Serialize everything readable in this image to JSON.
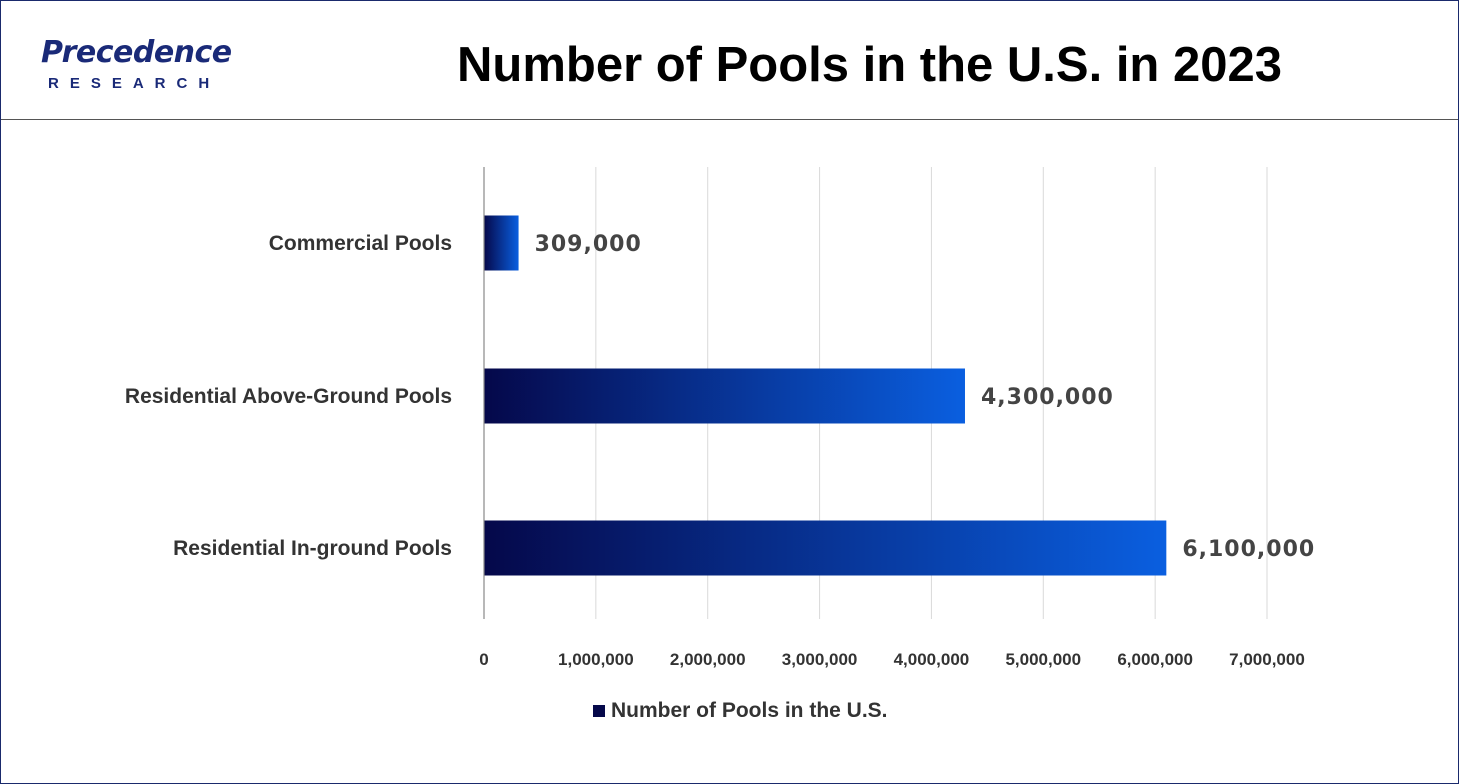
{
  "logo": {
    "word": "recedence",
    "initial": "P",
    "sub": "RESEARCH"
  },
  "title": "Number of Pools in the U.S. in 2023",
  "colors": {
    "bar_start": "#05084a",
    "bar_end": "#0a5fe0",
    "grid": "#d9d9d9",
    "axis": "#888888",
    "frame": "#1a2a6c"
  },
  "chart_data": {
    "type": "bar",
    "orientation": "horizontal",
    "title": "Number of Pools in the U.S. in 2023",
    "categories": [
      "Commercial Pools",
      "Residential Above-Ground Pools",
      "Residential In-ground Pools"
    ],
    "series": [
      {
        "name": "Number of Pools in the U.S.",
        "values": [
          309000,
          4300000,
          6100000
        ]
      }
    ],
    "data_labels": [
      "309,000",
      "4,300,000",
      "6,100,000"
    ],
    "xlim": [
      0,
      7000000
    ],
    "xticks": [
      0,
      1000000,
      2000000,
      3000000,
      4000000,
      5000000,
      6000000,
      7000000
    ],
    "xtick_labels": [
      "0",
      "1,000,000",
      "2,000,000",
      "3,000,000",
      "4,000,000",
      "5,000,000",
      "6,000,000",
      "7,000,000"
    ],
    "grid": "vertical",
    "legend_position": "bottom"
  }
}
